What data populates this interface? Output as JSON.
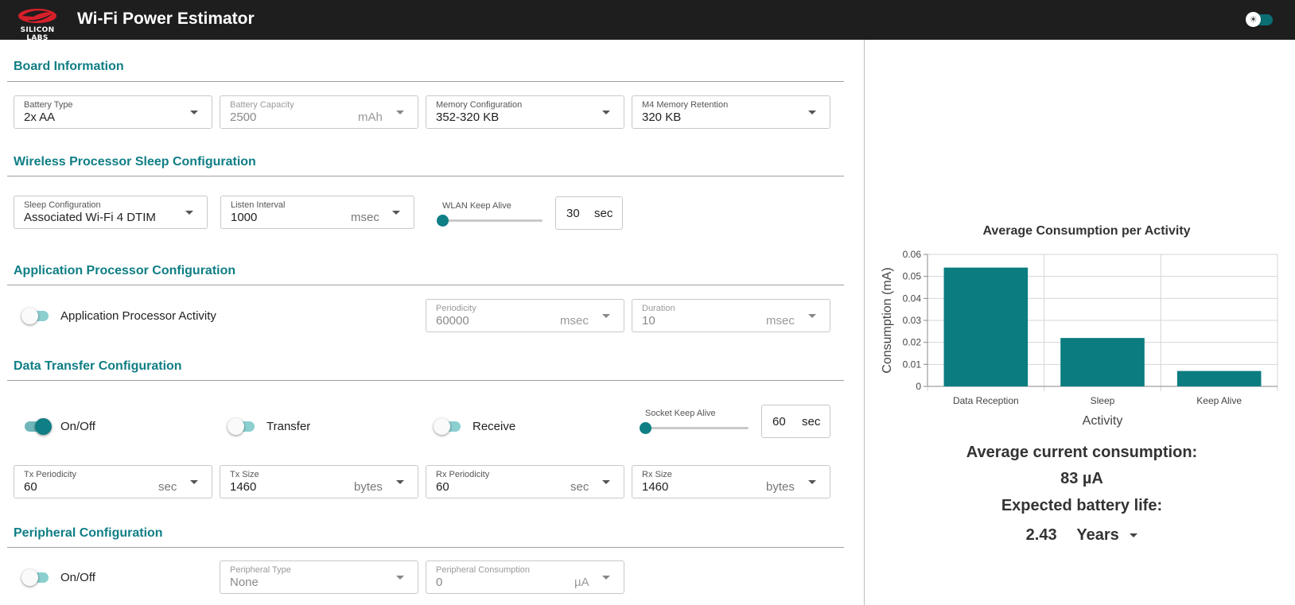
{
  "header": {
    "logo_text": "SILICON LABS",
    "title": "Wi-Fi Power Estimator",
    "theme_icon": "sun-icon"
  },
  "board": {
    "title": "Board Information",
    "battery_type": {
      "label": "Battery Type",
      "value": "2x AA"
    },
    "battery_capacity": {
      "label": "Battery Capacity",
      "value": "2500",
      "unit": "mAh"
    },
    "memory_config": {
      "label": "Memory Configuration",
      "value": "352-320 KB"
    },
    "m4_retention": {
      "label": "M4 Memory Retention",
      "value": "320 KB"
    }
  },
  "sleep": {
    "title": "Wireless Processor Sleep Configuration",
    "sleep_config": {
      "label": "Sleep Configuration",
      "value": "Associated Wi-Fi 4 DTIM"
    },
    "listen_interval": {
      "label": "Listen Interval",
      "value": "1000",
      "unit": "msec"
    },
    "wlan_keep_alive": {
      "label": "WLAN Keep Alive",
      "value": "30",
      "unit": "sec",
      "slider_fraction": 0
    }
  },
  "app_processor": {
    "title": "Application Processor Configuration",
    "activity_label": "Application Processor Activity",
    "activity_on": false,
    "periodicity": {
      "label": "Periodicity",
      "value": "60000",
      "unit": "msec"
    },
    "duration": {
      "label": "Duration",
      "value": "10",
      "unit": "msec"
    }
  },
  "data_transfer": {
    "title": "Data Transfer Configuration",
    "onoff_label": "On/Off",
    "onoff_on": true,
    "transfer_label": "Transfer",
    "transfer_on": false,
    "receive_label": "Receive",
    "receive_on": false,
    "socket_keep_alive": {
      "label": "Socket Keep Alive",
      "value": "60",
      "unit": "sec",
      "slider_fraction": 0
    },
    "tx_periodicity": {
      "label": "Tx Periodicity",
      "value": "60",
      "unit": "sec"
    },
    "tx_size": {
      "label": "Tx Size",
      "value": "1460",
      "unit": "bytes"
    },
    "rx_periodicity": {
      "label": "Rx Periodicity",
      "value": "60",
      "unit": "sec"
    },
    "rx_size": {
      "label": "Rx Size",
      "value": "1460",
      "unit": "bytes"
    }
  },
  "peripheral": {
    "title": "Peripheral Configuration",
    "onoff_label": "On/Off",
    "onoff_on": false,
    "type": {
      "label": "Peripheral Type",
      "value": "None"
    },
    "consumption": {
      "label": "Peripheral Consumption",
      "value": "0",
      "unit": "µA"
    }
  },
  "chart_data": {
    "type": "bar",
    "title": "Average Consumption per Activity",
    "xlabel": "Activity",
    "ylabel": "Consumption (mA)",
    "categories": [
      "Data Reception",
      "Sleep",
      "Keep Alive"
    ],
    "values": [
      0.054,
      0.022,
      0.007
    ],
    "ylim": [
      0,
      0.06
    ],
    "yticks": [
      "0",
      "0.01",
      "0.02",
      "0.03",
      "0.04",
      "0.05",
      "0.06"
    ],
    "grid": true,
    "bar_color": "#0b7c80"
  },
  "summary": {
    "avg_label": "Average current consumption:",
    "avg_value": "83 µA",
    "life_label": "Expected battery life:",
    "life_value": "2.43",
    "life_unit": "Years"
  },
  "colors": {
    "accent": "#0f7e85",
    "header_bg": "#1e1e1e"
  }
}
